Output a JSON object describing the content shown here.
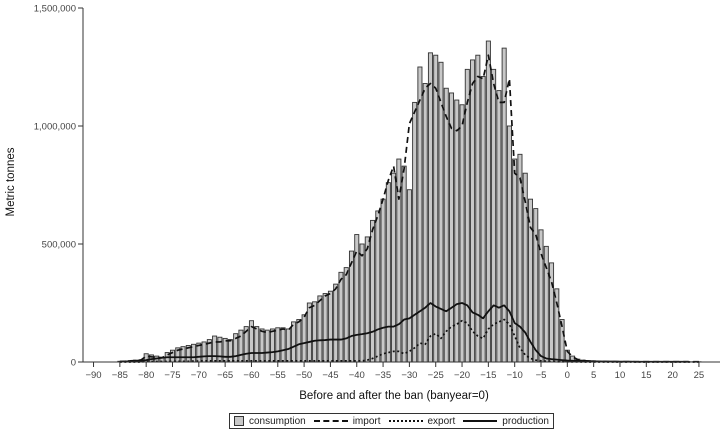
{
  "chart_data": {
    "type": "bar",
    "title": "",
    "xlabel": "Before and after the ban (banyear=0)",
    "ylabel": "Metric tonnes",
    "xlim": [
      -92,
      29
    ],
    "ylim": [
      0,
      1500000
    ],
    "x_ticks": [
      -90,
      -85,
      -80,
      -75,
      -70,
      -65,
      -60,
      -55,
      -50,
      -45,
      -40,
      -35,
      -30,
      -25,
      -20,
      -15,
      -10,
      -5,
      0,
      5,
      10,
      15,
      20,
      25
    ],
    "y_ticks": [
      0,
      500000,
      1000000,
      1500000
    ],
    "y_tick_labels": [
      "0",
      "500,000",
      "1,000,000",
      "1,500,000"
    ],
    "grid": false,
    "legend_position": "bottom",
    "legend": [
      "consumption",
      "import",
      "export",
      "production"
    ],
    "colors": {
      "bar_fill": "#c8c8c8",
      "bar_edge": "#333333",
      "lines": "#111111"
    },
    "x": [
      -85,
      -84,
      -83,
      -82,
      -81,
      -80,
      -79,
      -78,
      -77,
      -76,
      -75,
      -74,
      -73,
      -72,
      -71,
      -70,
      -69,
      -68,
      -67,
      -66,
      -65,
      -64,
      -63,
      -62,
      -61,
      -60,
      -59,
      -58,
      -57,
      -56,
      -55,
      -54,
      -53,
      -52,
      -51,
      -50,
      -49,
      -48,
      -47,
      -46,
      -45,
      -44,
      -43,
      -42,
      -41,
      -40,
      -39,
      -38,
      -37,
      -36,
      -35,
      -34,
      -33,
      -32,
      -31,
      -30,
      -29,
      -28,
      -27,
      -26,
      -25,
      -24,
      -23,
      -22,
      -21,
      -20,
      -19,
      -18,
      -17,
      -16,
      -15,
      -14,
      -13,
      -12,
      -11,
      -10,
      -9,
      -8,
      -7,
      -6,
      -5,
      -4,
      -3,
      -2,
      -1,
      0,
      1,
      2,
      3,
      4,
      5,
      6,
      7,
      8,
      9,
      10,
      11,
      12,
      13,
      14,
      15,
      16,
      17,
      18,
      19,
      20,
      21,
      22,
      23,
      24,
      25
    ],
    "series": [
      {
        "name": "consumption",
        "style": "bars",
        "values": [
          3000,
          4000,
          6000,
          8000,
          10000,
          35000,
          30000,
          25000,
          20000,
          40000,
          50000,
          60000,
          65000,
          70000,
          75000,
          80000,
          85000,
          95000,
          110000,
          105000,
          100000,
          95000,
          120000,
          135000,
          150000,
          175000,
          150000,
          140000,
          135000,
          140000,
          145000,
          145000,
          140000,
          170000,
          180000,
          200000,
          250000,
          255000,
          280000,
          290000,
          300000,
          330000,
          380000,
          400000,
          470000,
          540000,
          500000,
          530000,
          600000,
          640000,
          690000,
          760000,
          800000,
          860000,
          830000,
          730000,
          1100000,
          1250000,
          1180000,
          1310000,
          1300000,
          1270000,
          1160000,
          1140000,
          1110000,
          1090000,
          1240000,
          1280000,
          1300000,
          1210000,
          1360000,
          1240000,
          1150000,
          1330000,
          1000000,
          860000,
          880000,
          800000,
          690000,
          650000,
          560000,
          490000,
          420000,
          310000,
          180000,
          50000,
          25000,
          12000,
          8000,
          6000,
          5000,
          4000,
          3000,
          2000,
          2000,
          2000,
          1500,
          1500,
          1000,
          1000,
          1000,
          1000,
          1000,
          1000,
          1000,
          1000,
          1000,
          1000,
          1000,
          1000,
          1000
        ]
      },
      {
        "name": "import",
        "style": "dashed",
        "values": [
          2000,
          3000,
          5000,
          6000,
          8000,
          25000,
          22000,
          20000,
          18000,
          30000,
          40000,
          50000,
          55000,
          60000,
          65000,
          70000,
          75000,
          80000,
          85000,
          85000,
          90000,
          90000,
          100000,
          110000,
          130000,
          150000,
          140000,
          130000,
          125000,
          130000,
          135000,
          140000,
          135000,
          160000,
          170000,
          190000,
          230000,
          240000,
          260000,
          280000,
          290000,
          310000,
          350000,
          370000,
          420000,
          470000,
          450000,
          480000,
          560000,
          620000,
          690000,
          770000,
          830000,
          690000,
          820000,
          1010000,
          1060000,
          1110000,
          1160000,
          1180000,
          1160000,
          1100000,
          1040000,
          990000,
          980000,
          1000000,
          1100000,
          1180000,
          1210000,
          1200000,
          1300000,
          1180000,
          1100000,
          1100000,
          1200000,
          800000,
          780000,
          680000,
          570000,
          540000,
          460000,
          400000,
          340000,
          250000,
          150000,
          45000,
          22000,
          10000,
          6000,
          4000,
          3000,
          2000,
          1500,
          1000,
          1000,
          1000,
          1000,
          1000,
          1000,
          1000,
          1000,
          1000,
          1000,
          1000,
          1000,
          1000,
          1000,
          1000,
          1000,
          1000,
          1000
        ]
      },
      {
        "name": "export",
        "style": "dotted",
        "values": [
          0,
          0,
          0,
          0,
          0,
          2000,
          2000,
          2000,
          2000,
          2000,
          3000,
          3000,
          3000,
          3000,
          4000,
          4000,
          5000,
          5000,
          5000,
          5000,
          5000,
          5000,
          5000,
          5000,
          5000,
          5000,
          5000,
          5000,
          5000,
          5000,
          5000,
          5000,
          5000,
          5000,
          5000,
          5000,
          5000,
          5000,
          5000,
          5000,
          5000,
          5000,
          5000,
          5000,
          5000,
          5000,
          5000,
          8000,
          15000,
          25000,
          35000,
          40000,
          45000,
          45000,
          35000,
          45000,
          60000,
          80000,
          75000,
          110000,
          120000,
          100000,
          130000,
          150000,
          160000,
          175000,
          165000,
          130000,
          110000,
          100000,
          140000,
          160000,
          170000,
          180000,
          160000,
          110000,
          60000,
          30000,
          15000,
          8000,
          5000,
          3000,
          2000,
          1000,
          1000,
          1000,
          500,
          500,
          0,
          0,
          0,
          0,
          0,
          0,
          0,
          0,
          0,
          0,
          0,
          0,
          0,
          0,
          0,
          0,
          0,
          0,
          0,
          0,
          0,
          0,
          0
        ]
      },
      {
        "name": "production",
        "style": "solid",
        "values": [
          1000,
          2000,
          3000,
          4000,
          5000,
          8000,
          12000,
          15000,
          18000,
          20000,
          20000,
          20000,
          20000,
          20000,
          20000,
          22000,
          24000,
          25000,
          25000,
          24000,
          22000,
          22000,
          25000,
          30000,
          35000,
          38000,
          38000,
          38000,
          40000,
          42000,
          45000,
          50000,
          55000,
          65000,
          75000,
          80000,
          85000,
          90000,
          92000,
          93000,
          95000,
          95000,
          95000,
          100000,
          110000,
          115000,
          118000,
          122000,
          128000,
          138000,
          145000,
          150000,
          150000,
          160000,
          180000,
          185000,
          200000,
          215000,
          230000,
          250000,
          235000,
          225000,
          215000,
          230000,
          245000,
          250000,
          240000,
          210000,
          200000,
          185000,
          215000,
          240000,
          230000,
          240000,
          215000,
          165000,
          150000,
          125000,
          85000,
          50000,
          25000,
          15000,
          12000,
          10000,
          8000,
          6000,
          5000,
          5000,
          4000,
          3000,
          3000,
          2000,
          2000,
          2000,
          2000,
          1500,
          1500,
          1500,
          1000,
          1000,
          1000,
          1000,
          1000,
          1000,
          1000,
          1000,
          1000,
          1000,
          1000
        ]
      }
    ]
  },
  "legend": {
    "consumption": "consumption",
    "import": "import",
    "export": "export",
    "production": "production"
  }
}
